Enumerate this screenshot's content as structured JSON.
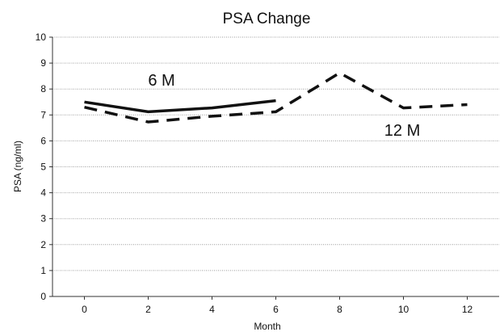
{
  "chart_data": {
    "type": "line",
    "title": "PSA Change",
    "xlabel": "Month",
    "ylabel": "PSA (ng/ml)",
    "xlim": [
      -1,
      13
    ],
    "ylim": [
      0,
      10
    ],
    "x_ticks": [
      0,
      2,
      4,
      6,
      8,
      10,
      12
    ],
    "y_ticks": [
      0,
      1,
      2,
      3,
      4,
      5,
      6,
      7,
      8,
      9,
      10
    ],
    "grid": true,
    "series": [
      {
        "name": "6 M",
        "style": "solid",
        "color": "#111111",
        "x": [
          0,
          2,
          4,
          6
        ],
        "y": [
          7.5,
          7.12,
          7.27,
          7.55
        ]
      },
      {
        "name": "12 M",
        "style": "dashed",
        "color": "#111111",
        "x": [
          0,
          2,
          4,
          6,
          8,
          10,
          12
        ],
        "y": [
          7.3,
          6.73,
          6.95,
          7.12,
          8.62,
          7.27,
          7.4
        ]
      }
    ]
  }
}
